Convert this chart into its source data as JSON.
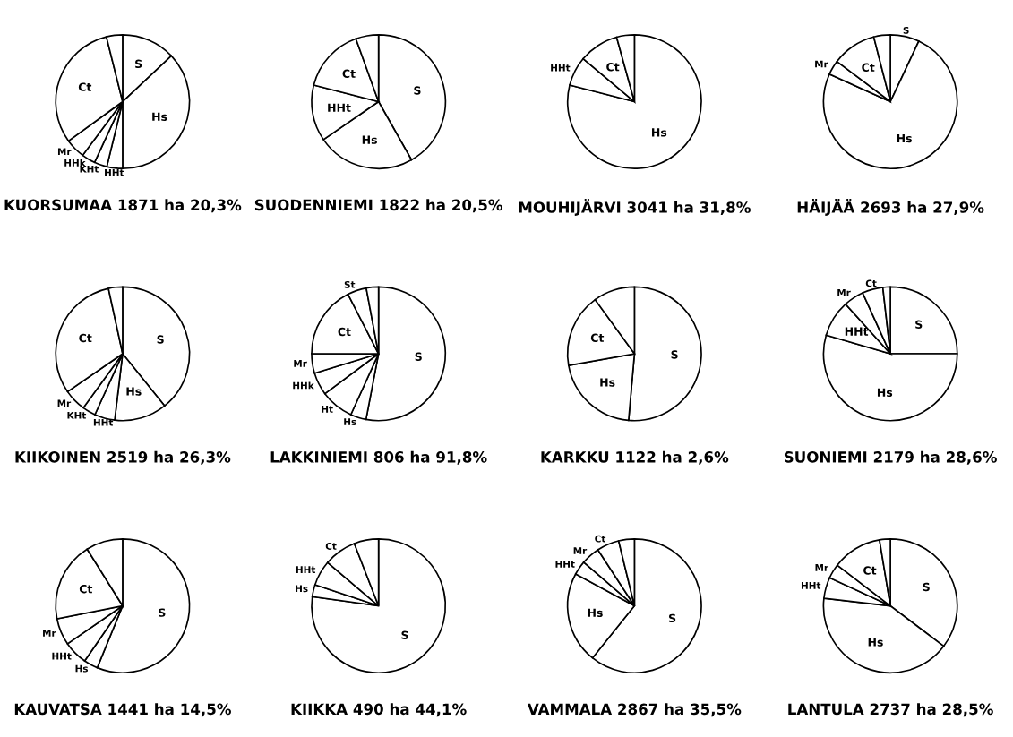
{
  "chart_data": [
    {
      "type": "pie",
      "title": "KUORSUMAA 1871 ha 20,3%",
      "categories": [
        "S",
        "Hs",
        "HHt",
        "KHt",
        "HHk",
        "Mr",
        "Ct",
        null
      ],
      "values": [
        13,
        37,
        3.8,
        3.1,
        3.3,
        4.8,
        31.1,
        3.9
      ],
      "colors": [
        "#ffffff",
        "#ffffff",
        "#ffffff",
        "#ffffff",
        "#ffffff",
        "#ffffff",
        "#ffffff",
        "#ffffff"
      ]
    },
    {
      "type": "pie",
      "title": "SUODENNIEMI 1822 ha 20,5%",
      "categories": [
        "S",
        "Hs",
        "HHt",
        "Ct",
        null
      ],
      "values": [
        41.8,
        23.6,
        13.6,
        15.5,
        5.5
      ],
      "colors": [
        "#ffffff",
        "#ffffff",
        "#ffffff",
        "#ffffff",
        "#ffffff"
      ]
    },
    {
      "type": "pie",
      "title": "MOUHIJÄRVI 3041 ha 31,8%",
      "categories": [
        "Hs",
        "HHt",
        "Ct",
        null
      ],
      "values": [
        79.0,
        7.1,
        9.6,
        4.3
      ],
      "colors": [
        "#ffffff",
        "#ffffff",
        "#ffffff",
        "#ffffff"
      ]
    },
    {
      "type": "pie",
      "title": "HÄIJÄÄ 2693 ha 27,9%",
      "categories": [
        "S",
        "Hs",
        "Mr",
        "Ct",
        null
      ],
      "values": [
        7.0,
        74.75,
        3.5,
        10.75,
        4.0
      ],
      "colors": [
        "#ffffff",
        "#ffffff",
        "#ffffff",
        "#ffffff",
        "#ffffff"
      ]
    },
    {
      "type": "pie",
      "title": "KIIKOINEN 2519 ha 26,3%",
      "categories": [
        "S",
        "Hs",
        "HHt",
        "KHt",
        "Mr",
        "Ct",
        null
      ],
      "values": [
        39.2,
        12.7,
        4.9,
        3.2,
        5.4,
        31.2,
        3.4
      ],
      "colors": [
        "#ffffff",
        "#ffffff",
        "#ffffff",
        "#ffffff",
        "#ffffff",
        "#ffffff",
        "#ffffff"
      ]
    },
    {
      "type": "pie",
      "title": "LAKKINIEMI 806 ha 91,8%",
      "categories": [
        "S",
        "Hs",
        "Ht",
        "HHk",
        "Mr",
        "Ct",
        "St",
        null
      ],
      "values": [
        53.0,
        3.8,
        8.0,
        5.5,
        4.75,
        17.4,
        4.6,
        2.95
      ],
      "colors": [
        "#ffffff",
        "#ffffff",
        "#ffffff",
        "#ffffff",
        "#ffffff",
        "#ffffff",
        "#ffffff",
        "#ffffff"
      ]
    },
    {
      "type": "pie",
      "title": "KARKKU 1122 ha 2,6%",
      "categories": [
        "S",
        "Hs",
        "Ct",
        null
      ],
      "values": [
        51.4,
        20.8,
        17.8,
        10
      ],
      "colors": [
        "#ffffff",
        "#ffffff",
        "#ffffff",
        "#ffffff"
      ]
    },
    {
      "type": "pie",
      "title": "SUONIEMI 2179 ha 28,6%",
      "categories": [
        "S",
        "Hs",
        "HHt",
        "Mr",
        "Ct",
        null
      ],
      "values": [
        25,
        54.5,
        8.8,
        4.9,
        5.0,
        1.8
      ],
      "colors": [
        "#ffffff",
        "#ffffff",
        "#ffffff",
        "#ffffff",
        "#ffffff",
        "#ffffff"
      ]
    },
    {
      "type": "pie",
      "title": "KAUVATSA 1441 ha 14,5%",
      "categories": [
        "S",
        "Hs",
        "HHt",
        "Mr",
        "Ct",
        null
      ],
      "values": [
        56.2,
        3.4,
        5.8,
        6.5,
        19.2,
        8.9
      ],
      "colors": [
        "#ffffff",
        "#ffffff",
        "#ffffff",
        "#ffffff",
        "#ffffff",
        "#ffffff"
      ]
    },
    {
      "type": "pie",
      "title": "KIIKKA 490 ha 44,1%",
      "categories": [
        "S",
        "Hs",
        "HHt",
        "Ct",
        null
      ],
      "values": [
        77.2,
        2.9,
        6.1,
        7.9,
        5.9
      ],
      "colors": [
        "#ffffff",
        "#ffffff",
        "#ffffff",
        "#ffffff",
        "#ffffff"
      ]
    },
    {
      "type": "pie",
      "title": "VAMMALA 2867 ha 35,5%",
      "categories": [
        "S",
        "Hs",
        "HHt",
        "Mr",
        "Ct",
        null
      ],
      "values": [
        60.8,
        22.1,
        3.4,
        4.5,
        5.4,
        3.8
      ],
      "colors": [
        "#ffffff",
        "#ffffff",
        "#ffffff",
        "#ffffff",
        "#ffffff",
        "#ffffff"
      ]
    },
    {
      "type": "pie",
      "title": "LANTULA 2737 ha 28,5%",
      "categories": [
        "S",
        "Hs",
        "HHt",
        "Mr",
        "Ct",
        null
      ],
      "values": [
        35.3,
        41.5,
        5.1,
        3.5,
        12.0,
        2.6
      ],
      "colors": [
        "#ffffff",
        "#ffffff",
        "#ffffff",
        "#ffffff",
        "#ffffff",
        "#ffffff"
      ]
    }
  ]
}
